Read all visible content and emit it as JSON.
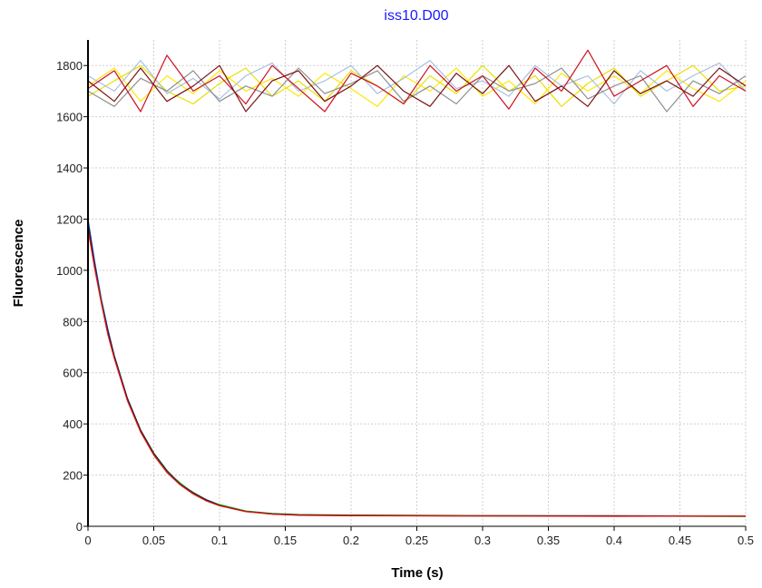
{
  "chart_data": {
    "type": "line",
    "title": "iss10.D00",
    "xlabel": "Time (s)",
    "ylabel": "Fluorescence",
    "xlim": [
      0,
      0.5
    ],
    "ylim": [
      0,
      1900
    ],
    "x_ticks": [
      0,
      0.05,
      0.1,
      0.15,
      0.2,
      0.25,
      0.3,
      0.35,
      0.4,
      0.45,
      0.5
    ],
    "x_tick_labels": [
      "0",
      "0.05",
      "0.1",
      "0.15",
      "0.2",
      "0.25",
      "0.3",
      "0.35",
      "0.4",
      "0.45",
      "0.5"
    ],
    "y_ticks": [
      0,
      200,
      400,
      600,
      800,
      1000,
      1200,
      1400,
      1600,
      1800
    ],
    "y_tick_labels": [
      "0",
      "200",
      "400",
      "600",
      "800",
      "1000",
      "1200",
      "1400",
      "1600",
      "1800"
    ],
    "grid": true,
    "legend": "none",
    "colors": {
      "title": "#1a1aff",
      "grid": "#cfcfcf",
      "axis": "#000000"
    },
    "series": [
      {
        "color": "#ffe800",
        "points": [
          [
            0,
            1720
          ],
          [
            0.02,
            1790
          ],
          [
            0.04,
            1660
          ],
          [
            0.06,
            1760
          ],
          [
            0.08,
            1690
          ],
          [
            0.1,
            1780
          ],
          [
            0.12,
            1700
          ],
          [
            0.14,
            1750
          ],
          [
            0.16,
            1680
          ],
          [
            0.18,
            1770
          ],
          [
            0.2,
            1710
          ],
          [
            0.22,
            1640
          ],
          [
            0.24,
            1760
          ],
          [
            0.26,
            1700
          ],
          [
            0.28,
            1790
          ],
          [
            0.3,
            1680
          ],
          [
            0.32,
            1740
          ],
          [
            0.34,
            1650
          ],
          [
            0.36,
            1770
          ],
          [
            0.38,
            1700
          ],
          [
            0.4,
            1760
          ],
          [
            0.42,
            1690
          ],
          [
            0.44,
            1780
          ],
          [
            0.46,
            1710
          ],
          [
            0.48,
            1660
          ],
          [
            0.5,
            1740
          ]
        ]
      },
      {
        "color": "#e8e000",
        "points": [
          [
            0,
            1680
          ],
          [
            0.02,
            1740
          ],
          [
            0.04,
            1800
          ],
          [
            0.06,
            1700
          ],
          [
            0.08,
            1650
          ],
          [
            0.1,
            1730
          ],
          [
            0.12,
            1790
          ],
          [
            0.14,
            1680
          ],
          [
            0.16,
            1740
          ],
          [
            0.18,
            1660
          ],
          [
            0.2,
            1780
          ],
          [
            0.22,
            1720
          ],
          [
            0.24,
            1650
          ],
          [
            0.26,
            1760
          ],
          [
            0.28,
            1690
          ],
          [
            0.3,
            1800
          ],
          [
            0.32,
            1700
          ],
          [
            0.34,
            1760
          ],
          [
            0.36,
            1640
          ],
          [
            0.38,
            1730
          ],
          [
            0.4,
            1790
          ],
          [
            0.42,
            1680
          ],
          [
            0.44,
            1740
          ],
          [
            0.46,
            1800
          ],
          [
            0.48,
            1700
          ],
          [
            0.5,
            1720
          ]
        ]
      },
      {
        "color": "#a8c0e0",
        "points": [
          [
            0,
            1760
          ],
          [
            0.02,
            1700
          ],
          [
            0.04,
            1820
          ],
          [
            0.06,
            1690
          ],
          [
            0.08,
            1750
          ],
          [
            0.1,
            1670
          ],
          [
            0.12,
            1760
          ],
          [
            0.14,
            1810
          ],
          [
            0.16,
            1700
          ],
          [
            0.18,
            1740
          ],
          [
            0.2,
            1800
          ],
          [
            0.22,
            1690
          ],
          [
            0.24,
            1750
          ],
          [
            0.26,
            1820
          ],
          [
            0.28,
            1710
          ],
          [
            0.3,
            1740
          ],
          [
            0.32,
            1680
          ],
          [
            0.34,
            1800
          ],
          [
            0.36,
            1720
          ],
          [
            0.38,
            1760
          ],
          [
            0.4,
            1650
          ],
          [
            0.42,
            1780
          ],
          [
            0.44,
            1700
          ],
          [
            0.46,
            1760
          ],
          [
            0.48,
            1810
          ],
          [
            0.5,
            1700
          ]
        ]
      },
      {
        "color": "#909090",
        "points": [
          [
            0,
            1700
          ],
          [
            0.02,
            1640
          ],
          [
            0.04,
            1750
          ],
          [
            0.06,
            1700
          ],
          [
            0.08,
            1780
          ],
          [
            0.1,
            1660
          ],
          [
            0.12,
            1720
          ],
          [
            0.14,
            1680
          ],
          [
            0.16,
            1790
          ],
          [
            0.18,
            1690
          ],
          [
            0.2,
            1730
          ],
          [
            0.22,
            1780
          ],
          [
            0.24,
            1660
          ],
          [
            0.26,
            1720
          ],
          [
            0.28,
            1650
          ],
          [
            0.3,
            1760
          ],
          [
            0.32,
            1700
          ],
          [
            0.34,
            1730
          ],
          [
            0.36,
            1790
          ],
          [
            0.38,
            1670
          ],
          [
            0.4,
            1720
          ],
          [
            0.42,
            1760
          ],
          [
            0.44,
            1620
          ],
          [
            0.46,
            1740
          ],
          [
            0.48,
            1690
          ],
          [
            0.5,
            1760
          ]
        ]
      },
      {
        "color": "#cc1122",
        "points": [
          [
            0,
            1710
          ],
          [
            0.02,
            1780
          ],
          [
            0.04,
            1620
          ],
          [
            0.06,
            1840
          ],
          [
            0.08,
            1700
          ],
          [
            0.1,
            1760
          ],
          [
            0.12,
            1650
          ],
          [
            0.14,
            1800
          ],
          [
            0.16,
            1710
          ],
          [
            0.18,
            1620
          ],
          [
            0.2,
            1770
          ],
          [
            0.22,
            1720
          ],
          [
            0.24,
            1650
          ],
          [
            0.26,
            1800
          ],
          [
            0.28,
            1700
          ],
          [
            0.3,
            1760
          ],
          [
            0.32,
            1630
          ],
          [
            0.34,
            1790
          ],
          [
            0.36,
            1700
          ],
          [
            0.38,
            1860
          ],
          [
            0.4,
            1680
          ],
          [
            0.42,
            1740
          ],
          [
            0.44,
            1800
          ],
          [
            0.46,
            1640
          ],
          [
            0.48,
            1760
          ],
          [
            0.5,
            1700
          ]
        ]
      },
      {
        "color": "#7a1010",
        "points": [
          [
            0,
            1740
          ],
          [
            0.02,
            1660
          ],
          [
            0.04,
            1790
          ],
          [
            0.06,
            1660
          ],
          [
            0.08,
            1720
          ],
          [
            0.1,
            1800
          ],
          [
            0.12,
            1620
          ],
          [
            0.14,
            1740
          ],
          [
            0.16,
            1780
          ],
          [
            0.18,
            1660
          ],
          [
            0.2,
            1720
          ],
          [
            0.22,
            1800
          ],
          [
            0.24,
            1700
          ],
          [
            0.26,
            1640
          ],
          [
            0.28,
            1770
          ],
          [
            0.3,
            1690
          ],
          [
            0.32,
            1800
          ],
          [
            0.34,
            1660
          ],
          [
            0.36,
            1720
          ],
          [
            0.38,
            1640
          ],
          [
            0.4,
            1780
          ],
          [
            0.42,
            1690
          ],
          [
            0.44,
            1740
          ],
          [
            0.46,
            1680
          ],
          [
            0.48,
            1790
          ],
          [
            0.5,
            1720
          ]
        ]
      },
      {
        "color": "#1040c0",
        "points": [
          [
            0,
            1200
          ],
          [
            0.005,
            1035
          ],
          [
            0.01,
            892
          ],
          [
            0.015,
            771
          ],
          [
            0.02,
            667
          ],
          [
            0.03,
            500
          ],
          [
            0.04,
            375
          ],
          [
            0.05,
            283
          ],
          [
            0.06,
            216
          ],
          [
            0.07,
            167
          ],
          [
            0.08,
            130
          ],
          [
            0.09,
            104
          ],
          [
            0.1,
            84
          ],
          [
            0.12,
            59
          ],
          [
            0.14,
            48
          ],
          [
            0.16,
            44
          ],
          [
            0.2,
            42
          ],
          [
            0.3,
            40
          ],
          [
            0.4,
            40
          ],
          [
            0.5,
            40
          ]
        ]
      },
      {
        "color": "#20c020",
        "points": [
          [
            0,
            1170
          ],
          [
            0.005,
            1012
          ],
          [
            0.01,
            885
          ],
          [
            0.015,
            755
          ],
          [
            0.02,
            660
          ],
          [
            0.03,
            495
          ],
          [
            0.04,
            372
          ],
          [
            0.05,
            280
          ],
          [
            0.06,
            213
          ],
          [
            0.07,
            170
          ],
          [
            0.08,
            128
          ],
          [
            0.09,
            100
          ],
          [
            0.1,
            85
          ],
          [
            0.12,
            60
          ],
          [
            0.14,
            50
          ],
          [
            0.16,
            46
          ],
          [
            0.2,
            44
          ],
          [
            0.3,
            42
          ],
          [
            0.4,
            40
          ],
          [
            0.5,
            38
          ]
        ]
      },
      {
        "color": "#202020",
        "points": [
          [
            0,
            1180
          ],
          [
            0.005,
            1020
          ],
          [
            0.01,
            880
          ],
          [
            0.015,
            762
          ],
          [
            0.02,
            664
          ],
          [
            0.03,
            498
          ],
          [
            0.04,
            376
          ],
          [
            0.05,
            286
          ],
          [
            0.06,
            218
          ],
          [
            0.07,
            165
          ],
          [
            0.08,
            132
          ],
          [
            0.09,
            103
          ],
          [
            0.1,
            82
          ],
          [
            0.12,
            58
          ],
          [
            0.14,
            49
          ],
          [
            0.16,
            45
          ],
          [
            0.2,
            43
          ],
          [
            0.3,
            41
          ],
          [
            0.4,
            41
          ],
          [
            0.5,
            40
          ]
        ]
      },
      {
        "color": "#ee1111",
        "points": [
          [
            0,
            1160
          ],
          [
            0.005,
            1008
          ],
          [
            0.01,
            875
          ],
          [
            0.015,
            750
          ],
          [
            0.02,
            655
          ],
          [
            0.03,
            490
          ],
          [
            0.04,
            368
          ],
          [
            0.05,
            278
          ],
          [
            0.06,
            210
          ],
          [
            0.07,
            162
          ],
          [
            0.08,
            126
          ],
          [
            0.09,
            99
          ],
          [
            0.1,
            80
          ],
          [
            0.12,
            57
          ],
          [
            0.14,
            47
          ],
          [
            0.16,
            43
          ],
          [
            0.2,
            41
          ],
          [
            0.3,
            40
          ],
          [
            0.4,
            39
          ],
          [
            0.5,
            40
          ]
        ]
      }
    ]
  }
}
